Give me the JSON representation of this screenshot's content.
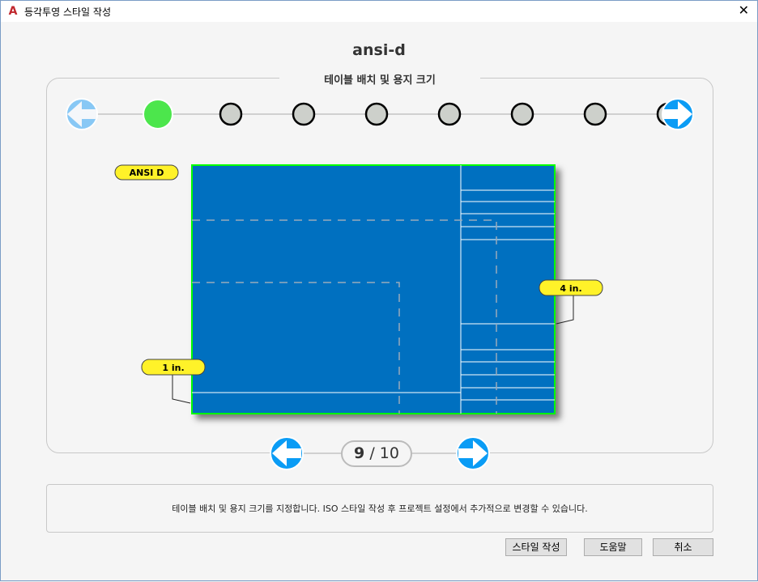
{
  "window": {
    "title": "등각투영 스타일 작성",
    "app_icon": "autocad-icon"
  },
  "heading": "ansi-d",
  "section_title": "테이블 배치 및 용지 크기",
  "steps": {
    "total": 8,
    "current": 1,
    "colors": {
      "active": "#4ce64c",
      "inactive": "#cdd0cb"
    }
  },
  "labels": {
    "paper": "ANSI D",
    "left_dim": "1 in.",
    "right_dim": "4 in."
  },
  "pager": {
    "current": "9",
    "total": "/ 10"
  },
  "description": "테이블 배치 및 용지 크기를 지정합니다. ISO 스타일 작성 후 프로젝트 설정에서 추가적으로 변경할 수 있습니다.",
  "buttons": {
    "create": "스타일 작성",
    "help": "도움말",
    "cancel": "취소"
  },
  "colors": {
    "sheet": "#0070c0",
    "sheet_border": "#00ff00",
    "nav": "#0a9cf5",
    "nav_disabled": "#88c8f5",
    "label": "#fff229"
  }
}
